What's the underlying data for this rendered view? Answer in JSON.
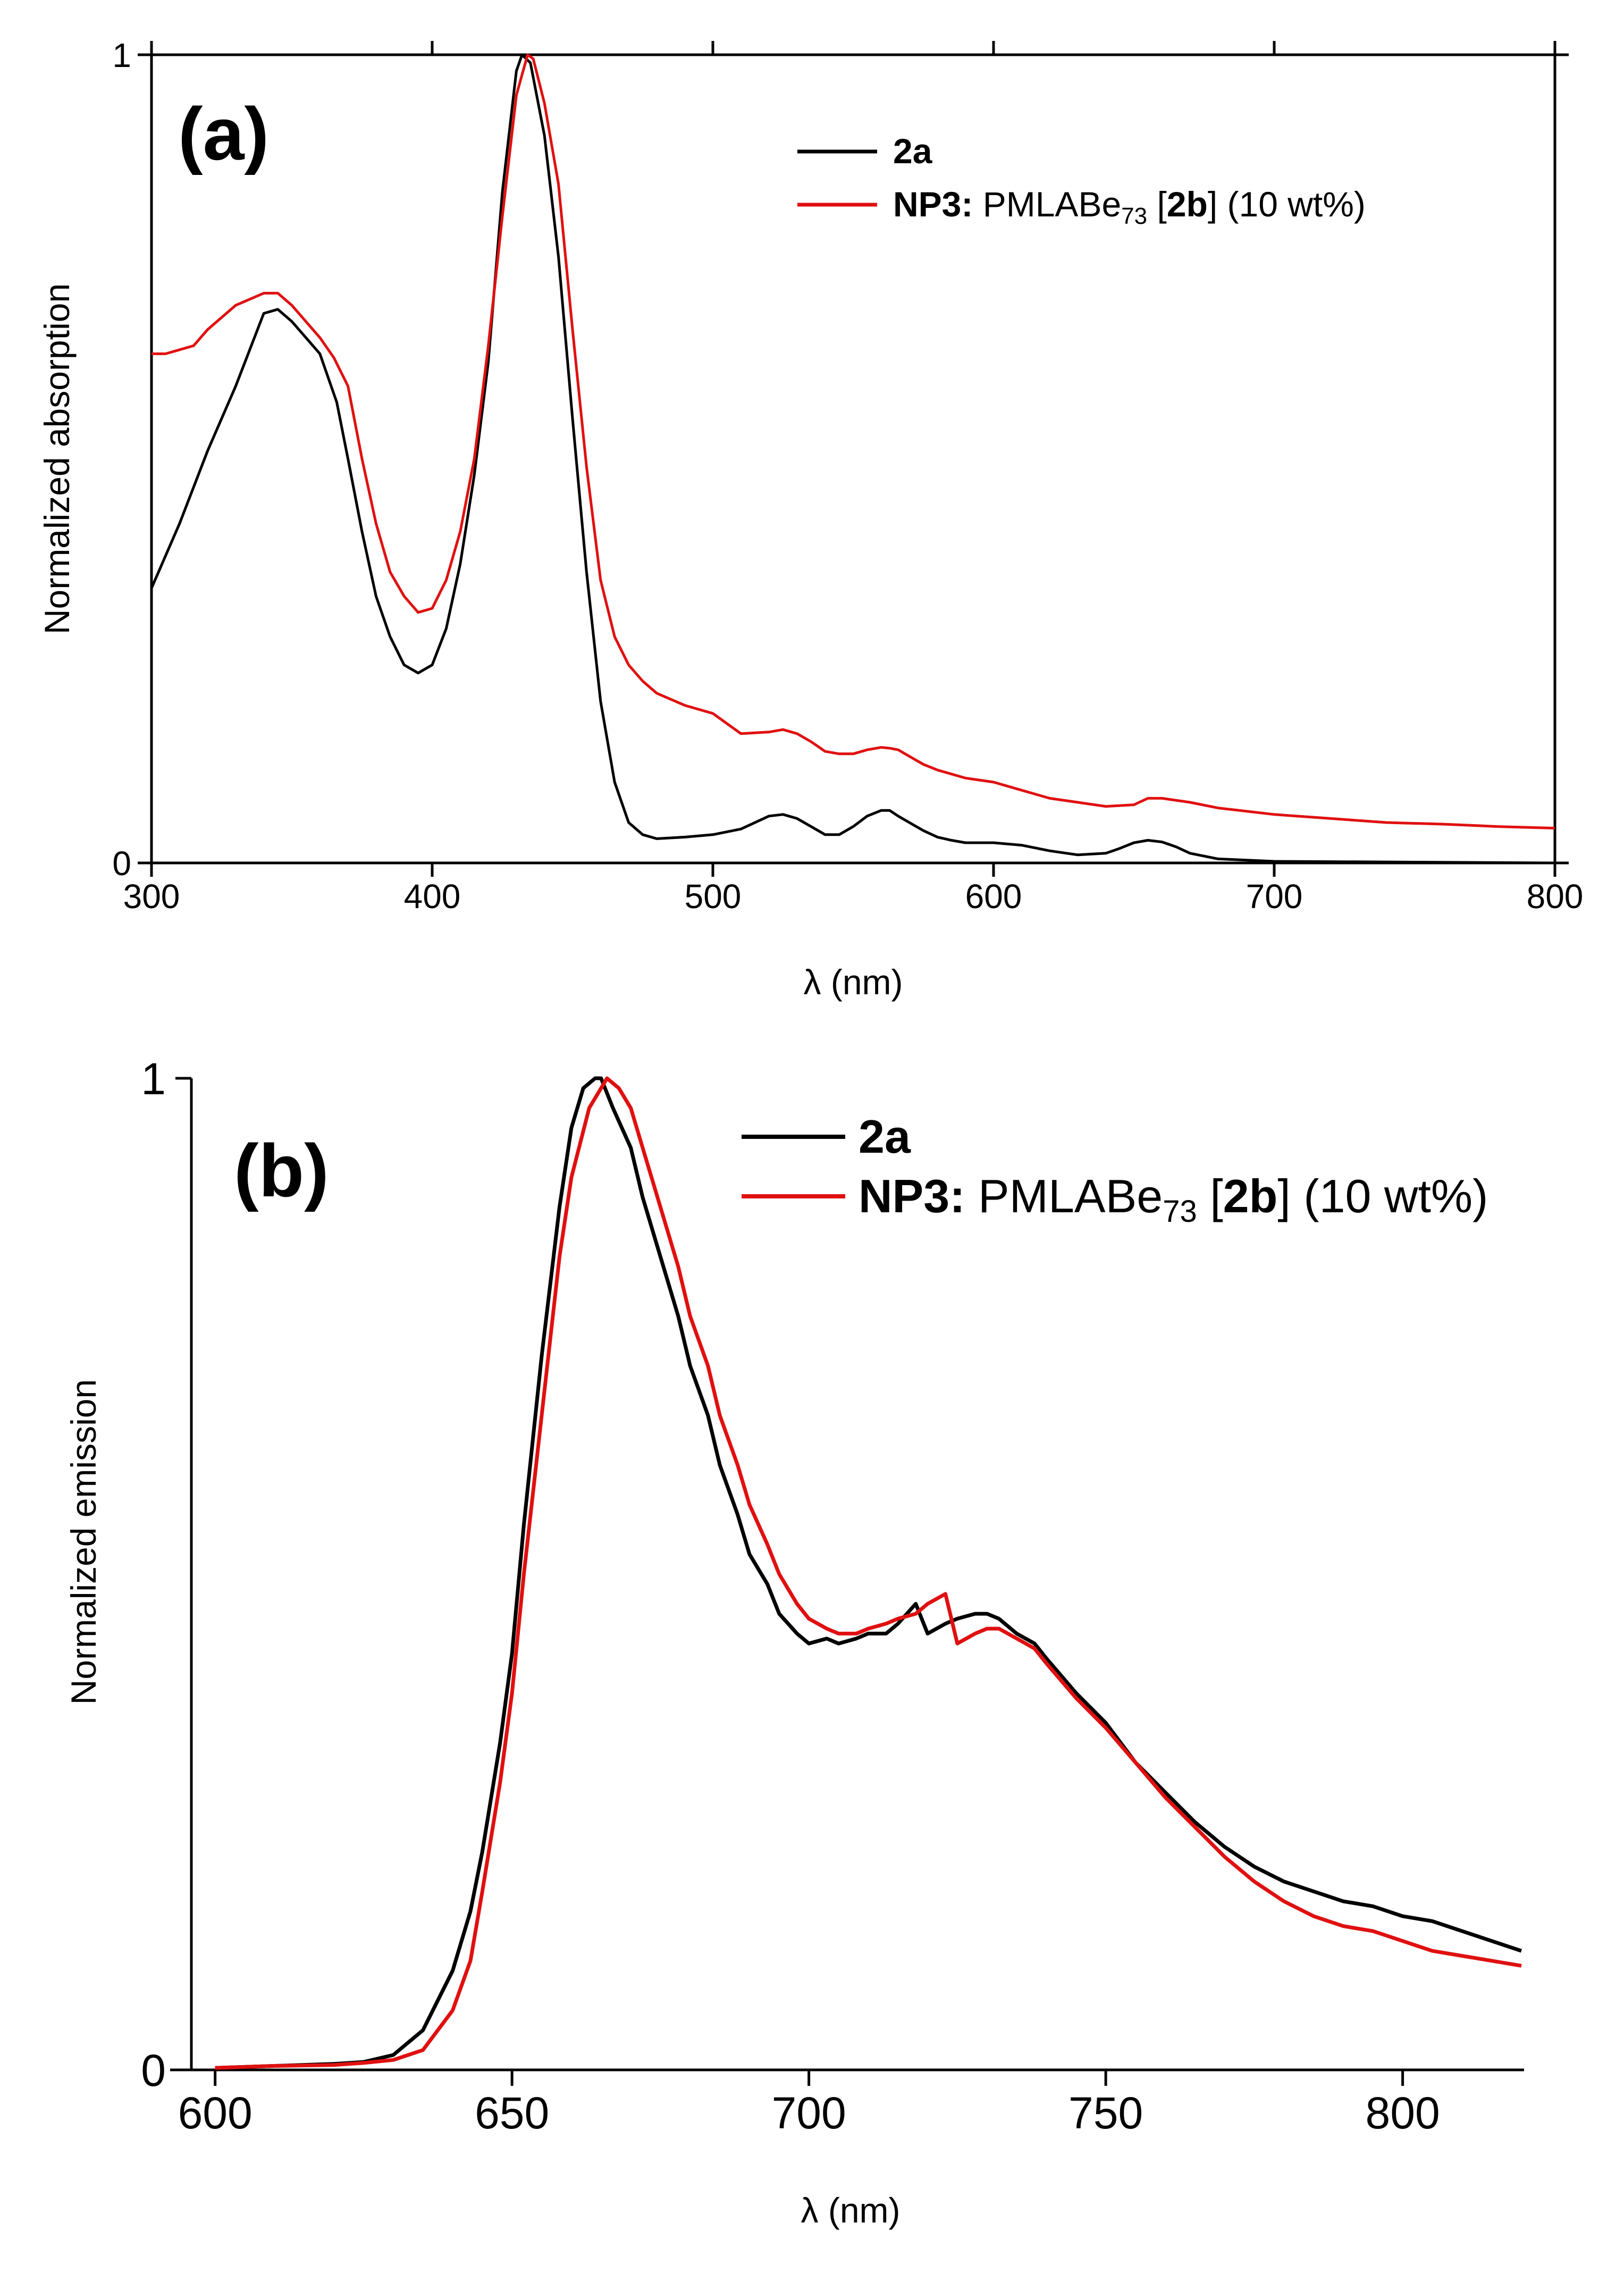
{
  "figure": {
    "panels": [
      "a",
      "b"
    ]
  },
  "chart_data": [
    {
      "type": "line",
      "panel_label": "(a)",
      "xlabel": "λ (nm)",
      "ylabel": "Normalized absorption",
      "xlim": [
        300,
        800
      ],
      "ylim": [
        0,
        1
      ],
      "xticks": [
        300,
        400,
        500,
        600,
        700,
        800
      ],
      "yticks": [
        0,
        1
      ],
      "legend_position": "top-right",
      "legend": [
        {
          "series": "2a",
          "bold": "2a",
          "rest": "",
          "sub": "",
          "after": "",
          "bracket": "",
          "tail": ""
        },
        {
          "series": "NP3",
          "bold": "NP3:",
          "rest": " PMLABe",
          "sub": "73",
          "after": " [",
          "bracket": "2b",
          "tail": "] (10 wt%)"
        }
      ],
      "series": [
        {
          "name": "2a",
          "color": "#000000",
          "x": [
            300,
            310,
            320,
            330,
            340,
            345,
            350,
            360,
            366,
            370,
            375,
            380,
            385,
            390,
            395,
            400,
            405,
            410,
            415,
            420,
            425,
            430,
            432,
            435,
            440,
            445,
            450,
            455,
            460,
            465,
            470,
            475,
            480,
            490,
            500,
            510,
            520,
            525,
            530,
            535,
            540,
            545,
            550,
            555,
            560,
            563,
            566,
            570,
            575,
            580,
            585,
            590,
            600,
            610,
            620,
            630,
            640,
            645,
            650,
            655,
            660,
            665,
            670,
            680,
            700,
            750,
            800
          ],
          "y": [
            0.34,
            0.42,
            0.51,
            0.59,
            0.68,
            0.685,
            0.67,
            0.63,
            0.57,
            0.5,
            0.41,
            0.33,
            0.28,
            0.245,
            0.235,
            0.245,
            0.29,
            0.37,
            0.48,
            0.62,
            0.83,
            0.98,
            1.0,
            0.99,
            0.9,
            0.75,
            0.55,
            0.36,
            0.2,
            0.1,
            0.05,
            0.035,
            0.03,
            0.032,
            0.035,
            0.042,
            0.058,
            0.06,
            0.055,
            0.045,
            0.035,
            0.035,
            0.045,
            0.058,
            0.065,
            0.065,
            0.058,
            0.05,
            0.04,
            0.032,
            0.028,
            0.025,
            0.025,
            0.022,
            0.015,
            0.01,
            0.012,
            0.018,
            0.025,
            0.028,
            0.026,
            0.02,
            0.012,
            0.005,
            0.002,
            0.001,
            0.0
          ]
        },
        {
          "name": "NP3",
          "color": "#e01010",
          "x": [
            300,
            305,
            310,
            315,
            320,
            330,
            340,
            345,
            350,
            355,
            360,
            365,
            370,
            375,
            380,
            385,
            390,
            395,
            400,
            405,
            410,
            415,
            420,
            425,
            430,
            434,
            436,
            440,
            445,
            450,
            455,
            460,
            465,
            470,
            475,
            480,
            490,
            500,
            510,
            520,
            525,
            530,
            535,
            540,
            545,
            550,
            555,
            560,
            563,
            566,
            570,
            575,
            580,
            590,
            600,
            610,
            620,
            630,
            640,
            650,
            655,
            660,
            670,
            680,
            700,
            720,
            740,
            760,
            780,
            800
          ],
          "y": [
            0.63,
            0.63,
            0.635,
            0.64,
            0.66,
            0.69,
            0.705,
            0.705,
            0.69,
            0.67,
            0.65,
            0.625,
            0.59,
            0.5,
            0.42,
            0.36,
            0.33,
            0.31,
            0.315,
            0.35,
            0.41,
            0.5,
            0.64,
            0.8,
            0.95,
            1.0,
            0.995,
            0.94,
            0.84,
            0.66,
            0.49,
            0.35,
            0.28,
            0.245,
            0.225,
            0.21,
            0.195,
            0.185,
            0.16,
            0.162,
            0.165,
            0.16,
            0.15,
            0.138,
            0.135,
            0.135,
            0.14,
            0.143,
            0.142,
            0.14,
            0.132,
            0.122,
            0.115,
            0.105,
            0.1,
            0.09,
            0.08,
            0.075,
            0.07,
            0.072,
            0.08,
            0.08,
            0.075,
            0.068,
            0.06,
            0.055,
            0.05,
            0.048,
            0.045,
            0.043
          ]
        }
      ]
    },
    {
      "type": "line",
      "panel_label": "(b)",
      "xlabel": "λ (nm)",
      "ylabel": "Normalized emission",
      "xlim": [
        596,
        820
      ],
      "ylim": [
        0,
        1
      ],
      "xticks": [
        600,
        650,
        700,
        750,
        800
      ],
      "yticks": [
        0,
        1
      ],
      "legend_position": "top-right",
      "legend": [
        {
          "series": "2a",
          "bold": "2a",
          "rest": "",
          "sub": "",
          "after": "",
          "bracket": "",
          "tail": ""
        },
        {
          "series": "NP3",
          "bold": "NP3:",
          "rest": " PMLABe",
          "sub": "73",
          "after": " [",
          "bracket": "2b",
          "tail": "] (10 wt%)"
        }
      ],
      "series": [
        {
          "name": "2a",
          "color": "#000000",
          "x": [
            600,
            610,
            620,
            625,
            630,
            635,
            640,
            643,
            645,
            648,
            650,
            652,
            655,
            658,
            660,
            662,
            664,
            665,
            667,
            670,
            672,
            675,
            678,
            680,
            683,
            685,
            688,
            690,
            693,
            695,
            698,
            700,
            703,
            705,
            708,
            710,
            713,
            715,
            718,
            720,
            723,
            725,
            728,
            730,
            732,
            735,
            738,
            740,
            745,
            750,
            755,
            760,
            765,
            770,
            775,
            780,
            785,
            790,
            795,
            800,
            805,
            810,
            815,
            820
          ],
          "y": [
            0.002,
            0.004,
            0.006,
            0.008,
            0.015,
            0.04,
            0.1,
            0.16,
            0.22,
            0.33,
            0.42,
            0.55,
            0.72,
            0.87,
            0.95,
            0.99,
            1.0,
            1.0,
            0.97,
            0.93,
            0.88,
            0.82,
            0.76,
            0.71,
            0.66,
            0.61,
            0.56,
            0.52,
            0.49,
            0.46,
            0.44,
            0.43,
            0.435,
            0.43,
            0.435,
            0.44,
            0.44,
            0.45,
            0.47,
            0.44,
            0.45,
            0.455,
            0.46,
            0.46,
            0.455,
            0.44,
            0.43,
            0.415,
            0.38,
            0.35,
            0.31,
            0.28,
            0.25,
            0.225,
            0.205,
            0.19,
            0.18,
            0.17,
            0.165,
            0.155,
            0.15,
            0.14,
            0.13,
            0.12
          ]
        },
        {
          "name": "NP3",
          "color": "#e01010",
          "x": [
            600,
            610,
            620,
            625,
            630,
            635,
            640,
            643,
            645,
            648,
            650,
            652,
            655,
            658,
            660,
            663,
            665,
            666,
            668,
            670,
            672,
            675,
            678,
            680,
            683,
            685,
            688,
            690,
            693,
            695,
            698,
            700,
            703,
            705,
            708,
            710,
            713,
            715,
            718,
            720,
            723,
            725,
            728,
            730,
            732,
            735,
            738,
            740,
            745,
            750,
            755,
            760,
            765,
            770,
            775,
            780,
            785,
            790,
            795,
            800,
            805,
            810,
            815,
            820
          ],
          "y": [
            0.002,
            0.004,
            0.005,
            0.007,
            0.01,
            0.02,
            0.06,
            0.11,
            0.18,
            0.29,
            0.38,
            0.5,
            0.66,
            0.82,
            0.9,
            0.97,
            0.99,
            1.0,
            0.99,
            0.97,
            0.93,
            0.87,
            0.81,
            0.76,
            0.71,
            0.66,
            0.61,
            0.57,
            0.53,
            0.5,
            0.47,
            0.455,
            0.445,
            0.44,
            0.44,
            0.445,
            0.45,
            0.455,
            0.46,
            0.47,
            0.48,
            0.43,
            0.44,
            0.445,
            0.445,
            0.435,
            0.425,
            0.41,
            0.375,
            0.345,
            0.31,
            0.275,
            0.245,
            0.215,
            0.19,
            0.17,
            0.155,
            0.145,
            0.14,
            0.13,
            0.12,
            0.115,
            0.11,
            0.105
          ]
        }
      ]
    }
  ]
}
